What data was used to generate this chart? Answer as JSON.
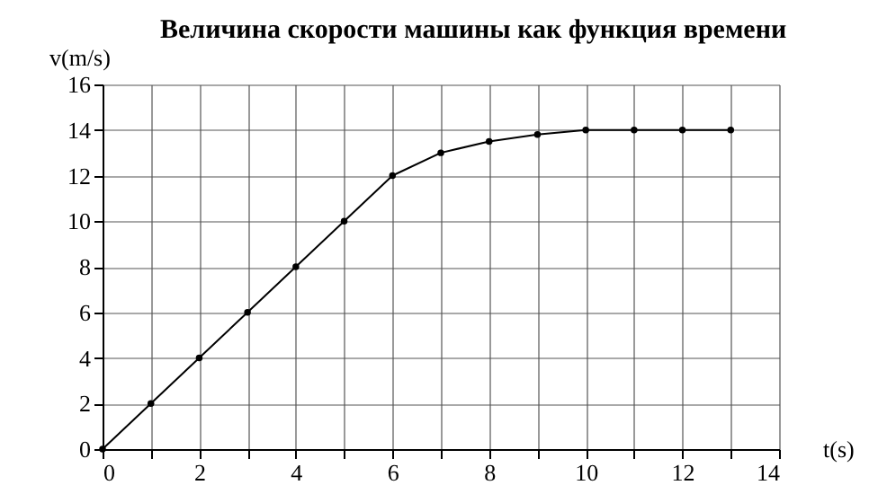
{
  "chart_data": {
    "type": "line",
    "title": "Величина скорости машины как функция времени",
    "xlabel": "t(s)",
    "ylabel": "v(m/s)",
    "x": [
      0,
      1,
      2,
      3,
      4,
      5,
      6,
      7,
      8,
      9,
      10,
      11,
      12,
      13
    ],
    "series": [
      {
        "color": "#000000",
        "values": [
          0,
          2,
          4,
          6,
          8,
          10,
          12,
          13,
          13.5,
          13.8,
          14,
          14,
          14,
          14
        ]
      }
    ],
    "xlim": [
      0,
      14
    ],
    "ylim": [
      0,
      16
    ],
    "xticks": [
      0,
      {
        "value": 1,
        "label": null
      },
      2,
      {
        "value": 3,
        "label": null
      },
      4,
      {
        "value": 5,
        "label": null
      },
      6,
      {
        "value": 7,
        "label": null
      },
      8,
      {
        "value": 9,
        "label": null
      },
      10,
      {
        "value": 11,
        "label": null
      },
      12,
      {
        "value": 13,
        "label": null
      },
      14
    ],
    "yticks": [
      0,
      2,
      4,
      6,
      8,
      10,
      12,
      14,
      16
    ],
    "grid": true,
    "marker": "circle",
    "line_style": "solid"
  }
}
